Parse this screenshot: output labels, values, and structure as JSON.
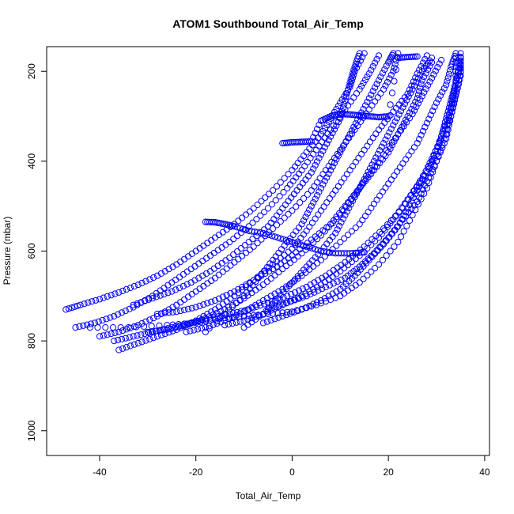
{
  "chart_data": {
    "type": "scatter",
    "title": "ATOM1 Southbound Total_Air_Temp",
    "xlabel": "Total_Air_Temp",
    "ylabel": "Pressure (mbar)",
    "xlim": [
      -51,
      41
    ],
    "ylim": [
      1055,
      145
    ],
    "y_reversed": true,
    "xticks": [
      -40,
      -20,
      0,
      20,
      40
    ],
    "yticks": [
      200,
      400,
      600,
      800,
      1000
    ],
    "grid": false,
    "legend": "none",
    "marker": "open-circle",
    "series_color": "#0000ff",
    "series": [
      {
        "values": [
          [
            -47,
            730
          ],
          [
            -44,
            720
          ],
          [
            -40,
            707
          ],
          [
            -36,
            692
          ],
          [
            -32,
            675
          ],
          [
            -28,
            655
          ],
          [
            -24,
            630
          ],
          [
            -20,
            600
          ],
          [
            -16,
            570
          ],
          [
            -12,
            540
          ],
          [
            -8,
            505
          ],
          [
            -4,
            465
          ],
          [
            0,
            420
          ],
          [
            3,
            380
          ],
          [
            6,
            340
          ],
          [
            8,
            305
          ],
          [
            10,
            270
          ],
          [
            12,
            235
          ],
          [
            13,
            200
          ],
          [
            15,
            160
          ]
        ]
      },
      {
        "values": [
          [
            -45,
            770
          ],
          [
            -41,
            760
          ],
          [
            -37,
            745
          ],
          [
            -33,
            725
          ],
          [
            -29,
            700
          ],
          [
            -25,
            670
          ],
          [
            -21,
            640
          ],
          [
            -17,
            610
          ],
          [
            -13,
            580
          ],
          [
            -9,
            545
          ],
          [
            -5,
            505
          ],
          [
            -1,
            460
          ],
          [
            2,
            420
          ],
          [
            5,
            375
          ],
          [
            8,
            330
          ],
          [
            11,
            285
          ],
          [
            14,
            240
          ],
          [
            16,
            205
          ],
          [
            18,
            165
          ]
        ]
      },
      {
        "values": [
          [
            -40,
            790
          ],
          [
            -36,
            780
          ],
          [
            -32,
            765
          ],
          [
            -28,
            745
          ],
          [
            -24,
            720
          ],
          [
            -20,
            690
          ],
          [
            -16,
            660
          ],
          [
            -12,
            625
          ],
          [
            -8,
            590
          ],
          [
            -4,
            550
          ],
          [
            0,
            510
          ],
          [
            4,
            465
          ],
          [
            7,
            420
          ],
          [
            10,
            375
          ],
          [
            13,
            330
          ],
          [
            16,
            285
          ],
          [
            19,
            240
          ],
          [
            21,
            200
          ],
          [
            22,
            160
          ]
        ]
      },
      {
        "values": [
          [
            -36,
            820
          ],
          [
            -32,
            805
          ],
          [
            -28,
            790
          ],
          [
            -24,
            775
          ],
          [
            -20,
            755
          ],
          [
            -16,
            730
          ],
          [
            -12,
            700
          ],
          [
            -8,
            665
          ],
          [
            -4,
            630
          ],
          [
            0,
            595
          ],
          [
            3,
            555
          ],
          [
            6,
            510
          ],
          [
            9,
            465
          ],
          [
            12,
            420
          ],
          [
            15,
            375
          ],
          [
            18,
            330
          ],
          [
            21,
            290
          ],
          [
            24,
            250
          ],
          [
            26,
            205
          ],
          [
            28,
            165
          ]
        ]
      },
      {
        "values": [
          [
            -30,
            780
          ],
          [
            -26,
            775
          ],
          [
            -22,
            765
          ],
          [
            -18,
            750
          ],
          [
            -14,
            730
          ],
          [
            -10,
            705
          ],
          [
            -6,
            675
          ],
          [
            -2,
            640
          ],
          [
            2,
            605
          ],
          [
            6,
            565
          ],
          [
            10,
            520
          ],
          [
            13,
            475
          ],
          [
            16,
            430
          ],
          [
            19,
            385
          ],
          [
            22,
            340
          ],
          [
            25,
            295
          ],
          [
            27,
            255
          ],
          [
            29,
            215
          ],
          [
            31,
            175
          ]
        ]
      },
      {
        "values": [
          [
            -22,
            780
          ],
          [
            -18,
            770
          ],
          [
            -14,
            755
          ],
          [
            -10,
            735
          ],
          [
            -6,
            710
          ],
          [
            -2,
            685
          ],
          [
            2,
            655
          ],
          [
            6,
            620
          ],
          [
            10,
            580
          ],
          [
            14,
            540
          ],
          [
            17,
            495
          ],
          [
            20,
            450
          ],
          [
            23,
            405
          ],
          [
            26,
            360
          ],
          [
            28,
            315
          ],
          [
            30,
            270
          ],
          [
            32,
            230
          ],
          [
            33,
            190
          ],
          [
            34,
            160
          ]
        ]
      },
      {
        "values": [
          [
            -14,
            765
          ],
          [
            -10,
            755
          ],
          [
            -6,
            740
          ],
          [
            -2,
            720
          ],
          [
            2,
            700
          ],
          [
            6,
            675
          ],
          [
            10,
            645
          ],
          [
            14,
            610
          ],
          [
            18,
            570
          ],
          [
            21,
            530
          ],
          [
            24,
            485
          ],
          [
            27,
            440
          ],
          [
            29,
            395
          ],
          [
            31,
            350
          ],
          [
            33,
            300
          ],
          [
            34,
            255
          ],
          [
            35,
            210
          ],
          [
            35,
            170
          ]
        ]
      },
      {
        "values": [
          [
            -5,
            730
          ],
          [
            -1,
            715
          ],
          [
            3,
            700
          ],
          [
            7,
            680
          ],
          [
            11,
            660
          ],
          [
            14,
            635
          ],
          [
            17,
            605
          ],
          [
            20,
            570
          ],
          [
            23,
            530
          ],
          [
            26,
            490
          ],
          [
            28,
            445
          ],
          [
            30,
            400
          ],
          [
            32,
            350
          ],
          [
            33,
            300
          ],
          [
            34,
            250
          ],
          [
            35,
            200
          ],
          [
            35,
            160
          ]
        ]
      },
      {
        "values": [
          [
            -42,
            770
          ],
          [
            -34,
            770
          ],
          [
            -26,
            765
          ],
          [
            -20,
            760
          ],
          [
            -15,
            750
          ],
          [
            -10,
            745
          ],
          [
            -5,
            740
          ],
          [
            0,
            735
          ],
          [
            5,
            720
          ],
          [
            10,
            700
          ],
          [
            14,
            670
          ],
          [
            18,
            630
          ],
          [
            22,
            580
          ],
          [
            25,
            520
          ],
          [
            28,
            460
          ],
          [
            30,
            400
          ],
          [
            32,
            340
          ],
          [
            33,
            280
          ],
          [
            34,
            220
          ],
          [
            34,
            170
          ]
        ]
      },
      {
        "values": [
          [
            -33,
            720
          ],
          [
            -29,
            705
          ],
          [
            -25,
            690
          ],
          [
            -21,
            670
          ],
          [
            -17,
            645
          ],
          [
            -13,
            615
          ],
          [
            -9,
            580
          ],
          [
            -5,
            545
          ],
          [
            -2,
            505
          ],
          [
            1,
            465
          ],
          [
            4,
            425
          ],
          [
            6,
            385
          ],
          [
            8,
            345
          ],
          [
            10,
            305
          ],
          [
            11,
            265
          ],
          [
            12,
            225
          ],
          [
            13,
            190
          ],
          [
            14,
            160
          ]
        ]
      },
      {
        "values": [
          [
            -18,
            780
          ],
          [
            -14,
            740
          ],
          [
            -10,
            700
          ],
          [
            -7,
            660
          ],
          [
            -4,
            620
          ],
          [
            -1,
            580
          ],
          [
            2,
            540
          ],
          [
            4,
            500
          ],
          [
            6,
            460
          ],
          [
            8,
            420
          ],
          [
            10,
            380
          ],
          [
            12,
            340
          ],
          [
            14,
            300
          ],
          [
            16,
            260
          ],
          [
            18,
            220
          ],
          [
            20,
            180
          ],
          [
            21,
            160
          ]
        ]
      },
      {
        "values": [
          [
            -10,
            770
          ],
          [
            -6,
            740
          ],
          [
            -3,
            705
          ],
          [
            0,
            670
          ],
          [
            3,
            635
          ],
          [
            6,
            600
          ],
          [
            9,
            560
          ],
          [
            11,
            520
          ],
          [
            13,
            480
          ],
          [
            15,
            440
          ],
          [
            17,
            400
          ],
          [
            19,
            360
          ],
          [
            21,
            320
          ],
          [
            23,
            280
          ],
          [
            25,
            240
          ],
          [
            27,
            200
          ],
          [
            29,
            170
          ]
        ]
      },
      {
        "values": [
          [
            -28,
            740
          ],
          [
            -24,
            735
          ],
          [
            -20,
            725
          ],
          [
            -16,
            710
          ],
          [
            -12,
            690
          ],
          [
            -8,
            665
          ],
          [
            -4,
            640
          ],
          [
            0,
            610
          ],
          [
            4,
            575
          ],
          [
            8,
            540
          ],
          [
            11,
            500
          ],
          [
            14,
            460
          ],
          [
            17,
            420
          ],
          [
            20,
            380
          ],
          [
            22,
            340
          ],
          [
            24,
            300
          ],
          [
            26,
            260
          ],
          [
            27,
            220
          ],
          [
            29,
            180
          ]
        ]
      },
      {
        "values": [
          [
            -6,
            760
          ],
          [
            -2,
            745
          ],
          [
            2,
            730
          ],
          [
            6,
            710
          ],
          [
            10,
            685
          ],
          [
            13,
            655
          ],
          [
            16,
            620
          ],
          [
            19,
            585
          ],
          [
            22,
            545
          ],
          [
            24,
            505
          ],
          [
            26,
            465
          ],
          [
            28,
            425
          ],
          [
            30,
            385
          ],
          [
            31,
            345
          ],
          [
            32,
            305
          ],
          [
            33,
            265
          ],
          [
            34,
            225
          ],
          [
            35,
            185
          ]
        ]
      },
      {
        "values": [
          [
            -18,
            535
          ],
          [
            -16,
            536
          ],
          [
            -14,
            540
          ],
          [
            -12,
            545
          ],
          [
            -9,
            555
          ],
          [
            -6,
            560
          ],
          [
            -3,
            570
          ],
          [
            0,
            580
          ],
          [
            3,
            590
          ],
          [
            6,
            600
          ],
          [
            9,
            605
          ],
          [
            12,
            605
          ],
          [
            15,
            603
          ]
        ]
      },
      {
        "values": [
          [
            -2,
            360
          ],
          [
            0,
            358
          ],
          [
            2,
            357
          ],
          [
            4,
            356
          ],
          [
            6,
            310
          ],
          [
            8,
            300
          ],
          [
            10,
            295
          ],
          [
            12,
            296
          ],
          [
            14,
            298
          ],
          [
            16,
            300
          ],
          [
            18,
            302
          ],
          [
            20,
            300
          ],
          [
            22,
            170
          ],
          [
            24,
            168
          ],
          [
            26,
            167
          ]
        ]
      },
      {
        "values": [
          [
            -37,
            800
          ],
          [
            -33,
            790
          ],
          [
            -29,
            780
          ],
          [
            -25,
            770
          ],
          [
            -21,
            760
          ],
          [
            -17,
            750
          ],
          [
            -13,
            740
          ],
          [
            -9,
            730
          ],
          [
            -5,
            715
          ],
          [
            -1,
            700
          ],
          [
            3,
            680
          ],
          [
            7,
            655
          ],
          [
            11,
            625
          ],
          [
            15,
            590
          ],
          [
            19,
            550
          ],
          [
            23,
            505
          ],
          [
            26,
            455
          ],
          [
            29,
            400
          ],
          [
            31,
            345
          ],
          [
            33,
            285
          ],
          [
            34,
            225
          ],
          [
            35,
            170
          ]
        ]
      }
    ]
  }
}
